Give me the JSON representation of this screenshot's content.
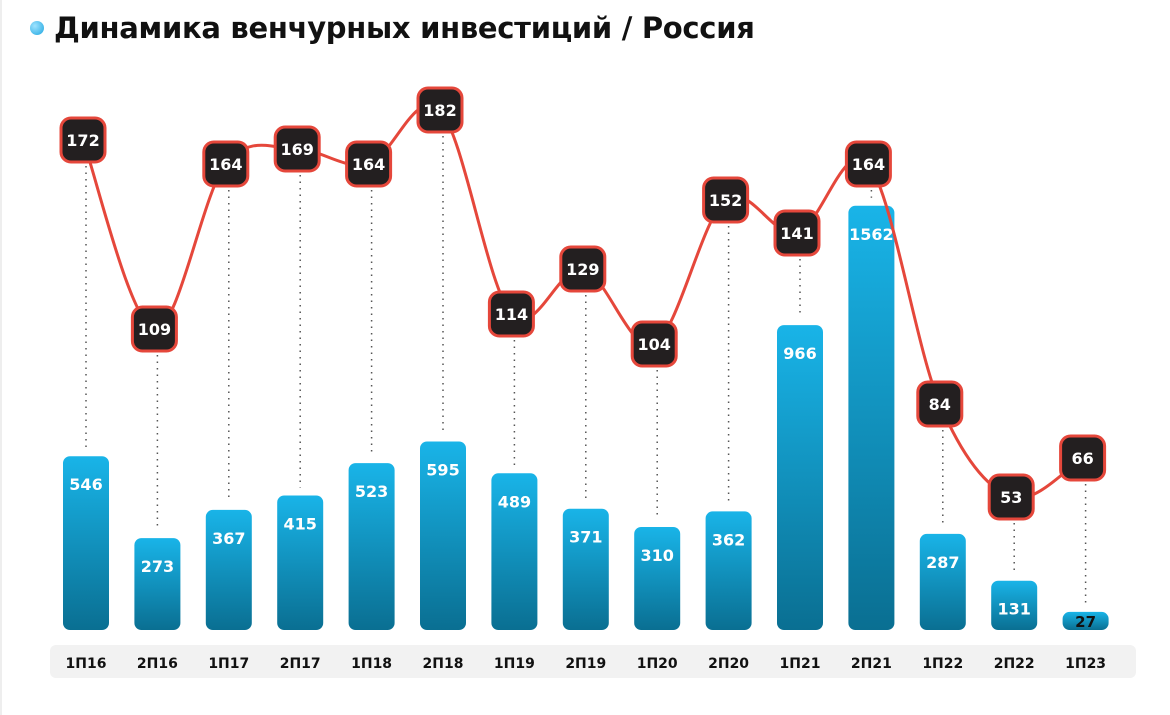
{
  "title": "Динамика венчурных инвестиций / Россия",
  "colors": {
    "bar_top": "#19b4e8",
    "bar_bottom": "#0a6f92",
    "line": "#e5473b",
    "label_box": "#231f20",
    "axis_band": "#f2f2f2"
  },
  "chart_data": {
    "type": "bar+line",
    "title": "Динамика венчурных инвестиций / Россия",
    "categories": [
      "1П16",
      "2П16",
      "1П17",
      "2П17",
      "1П18",
      "2П18",
      "1П19",
      "2П19",
      "1П20",
      "2П20",
      "1П21",
      "2П21",
      "1П22",
      "2П22",
      "1П23"
    ],
    "series": [
      {
        "name": "bars",
        "type": "bar",
        "values": [
          546,
          273,
          367,
          415,
          523,
          595,
          489,
          371,
          310,
          362,
          966,
          1562,
          287,
          131,
          27
        ]
      },
      {
        "name": "line",
        "type": "line",
        "values": [
          172,
          109,
          164,
          169,
          164,
          182,
          114,
          129,
          104,
          152,
          141,
          164,
          84,
          53,
          66
        ]
      }
    ],
    "xlabel": "",
    "ylabel": "",
    "grid": false,
    "legend": "none"
  }
}
